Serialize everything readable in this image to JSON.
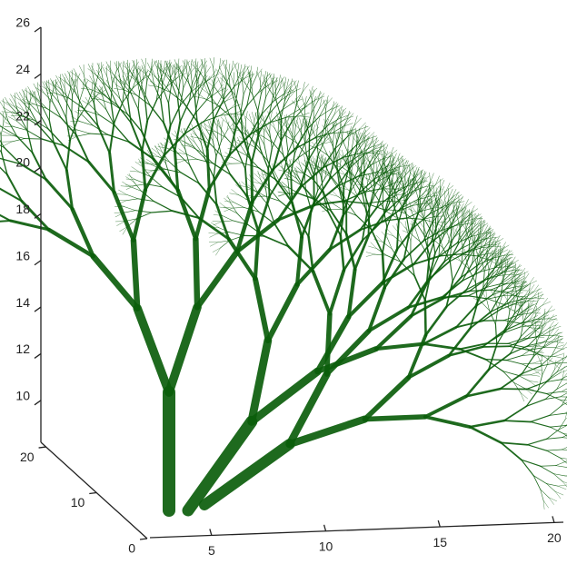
{
  "chart_data": {
    "type": "tree3d",
    "color": "#0b5e0b",
    "xlim": [
      2.3,
      20.4
    ],
    "xticks": [
      5,
      10,
      15,
      20
    ],
    "ylim": [
      0,
      21
    ],
    "yticks": [
      0,
      10,
      20
    ],
    "zlim": [
      8.2,
      26
    ],
    "zticks": [
      10,
      12,
      14,
      16,
      18,
      20,
      22,
      24,
      26
    ]
  }
}
